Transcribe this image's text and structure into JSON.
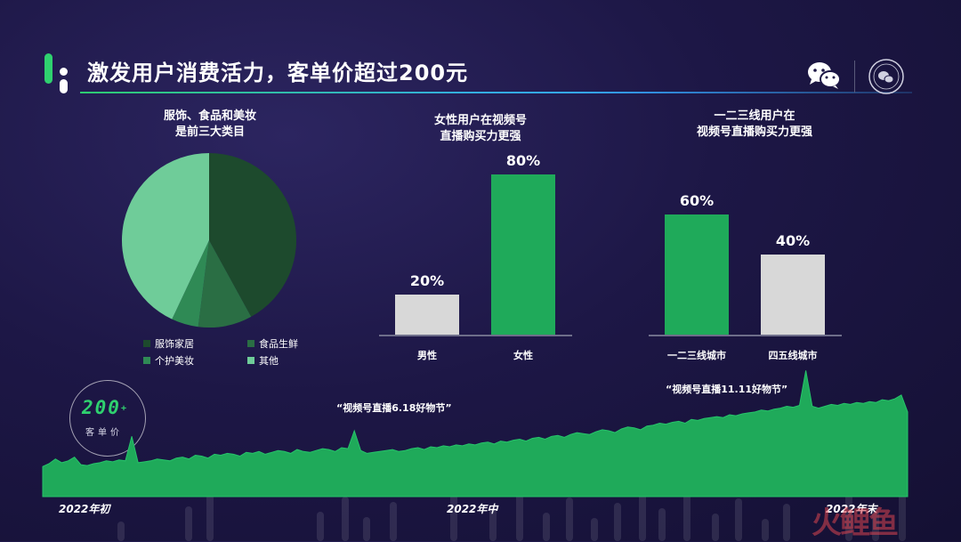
{
  "header": {
    "title": "激发用户消费活力，客单价超过200元",
    "icons": [
      "wechat-icon",
      "wechat-channel-seal-icon"
    ]
  },
  "colors": {
    "dark_green": "#1d4a2d",
    "mid_green": "#2a6e44",
    "green": "#1faa5a",
    "light_green": "#6fcc99",
    "gray": "#d8d8d8",
    "accent_green": "#2fd16f"
  },
  "pie": {
    "title_line1": "服饰、食品和美妆",
    "title_line2": "是前三大类目",
    "legend": [
      "服饰家居",
      "食品生鲜",
      "个护美妆",
      "其他"
    ]
  },
  "gender": {
    "title_line1": "女性用户在视频号",
    "title_line2": "直播购买力更强",
    "labels": [
      "20%",
      "80%"
    ],
    "categories": [
      "男性",
      "女性"
    ]
  },
  "city": {
    "title_line1": "一二三线用户在",
    "title_line2": "视频号直播购买力更强",
    "labels": [
      "60%",
      "40%"
    ],
    "categories": [
      "一二三线城市",
      "四五线城市"
    ]
  },
  "kpi": {
    "value": "200",
    "suffix": "+",
    "label": "客单价"
  },
  "timeline": {
    "annotation_618": "“视频号直播6.18好物节”",
    "annotation_1111": "“视频号直播11.11好物节”",
    "x_ticks": [
      "2022年初",
      "2022年中",
      "2022年末"
    ]
  },
  "watermark": "火鲤鱼",
  "chart_data": [
    {
      "type": "pie",
      "title": "服饰、食品和美妆是前三大类目",
      "categories": [
        "服饰家居",
        "食品生鲜",
        "个护美妆",
        "其他"
      ],
      "values": [
        42,
        10,
        5,
        43
      ],
      "colors": [
        "#1d4a2d",
        "#2a6e44",
        "#2f8a55",
        "#6fcc99"
      ],
      "legend_position": "bottom"
    },
    {
      "type": "bar",
      "title": "女性用户在视频号直播购买力更强",
      "categories": [
        "男性",
        "女性"
      ],
      "values": [
        20,
        80
      ],
      "unit": "%",
      "colors": [
        "#d8d8d8",
        "#1faa5a"
      ],
      "ylim": [
        0,
        80
      ]
    },
    {
      "type": "bar",
      "title": "一二三线用户在视频号直播购买力更强",
      "categories": [
        "一二三线城市",
        "四五线城市"
      ],
      "values": [
        60,
        40
      ],
      "unit": "%",
      "colors": [
        "#1faa5a",
        "#d8d8d8"
      ],
      "ylim": [
        0,
        80
      ]
    },
    {
      "type": "area",
      "title": "",
      "x_ticks": [
        "2022年初",
        "2022年中",
        "2022年末"
      ],
      "ylim": [
        0,
        140
      ],
      "grid": false,
      "values": [
        32,
        35,
        40,
        36,
        38,
        42,
        34,
        33,
        35,
        36,
        38,
        37,
        39,
        38,
        64,
        36,
        37,
        38,
        40,
        39,
        38,
        41,
        42,
        40,
        44,
        43,
        41,
        45,
        44,
        46,
        45,
        43,
        47,
        46,
        48,
        45,
        47,
        49,
        48,
        46,
        50,
        48,
        47,
        49,
        51,
        50,
        48,
        52,
        51,
        70,
        49,
        46,
        47,
        48,
        49,
        50,
        48,
        49,
        51,
        52,
        50,
        53,
        52,
        54,
        53,
        55,
        54,
        56,
        55,
        57,
        58,
        56,
        59,
        58,
        60,
        61,
        59,
        62,
        63,
        61,
        64,
        65,
        63,
        66,
        68,
        67,
        66,
        69,
        71,
        70,
        68,
        72,
        74,
        73,
        71,
        75,
        76,
        78,
        77,
        79,
        80,
        78,
        82,
        81,
        83,
        84,
        85,
        84,
        87,
        86,
        88,
        89,
        90,
        92,
        91,
        93,
        94,
        96,
        95,
        97,
        134,
        96,
        94,
        96,
        98,
        97,
        99,
        98,
        100,
        99,
        101,
        100,
        103,
        102,
        104,
        108,
        90
      ]
    }
  ]
}
